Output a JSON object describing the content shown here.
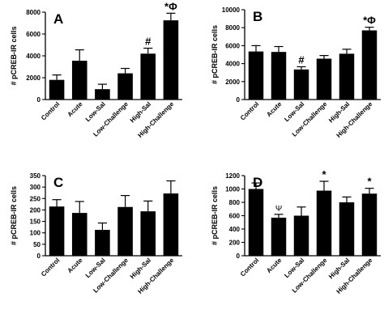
{
  "chart_data": [
    {
      "type": "bar",
      "panel_label": "A",
      "categories": [
        "Control",
        "Acute",
        "Low-Sal",
        "Low-Challenge",
        "High-Sal",
        "High-Challenge"
      ],
      "values": [
        1800,
        3550,
        950,
        2400,
        4200,
        7250
      ],
      "errors": [
        450,
        1000,
        450,
        450,
        500,
        650
      ],
      "annotations": [
        "",
        "",
        "",
        "",
        "#",
        "*Φ"
      ],
      "ylabel": "# pCREB-IR cells",
      "ylim": [
        0,
        8000
      ],
      "yticks": [
        0,
        2000,
        4000,
        6000,
        8000
      ],
      "grid": false
    },
    {
      "type": "bar",
      "panel_label": "B",
      "categories": [
        "Control",
        "Acute",
        "Low-Sal",
        "Low-Challenge",
        "High-Sal",
        "High-Challenge"
      ],
      "values": [
        5350,
        5300,
        3350,
        4550,
        5100,
        7700
      ],
      "errors": [
        650,
        600,
        300,
        350,
        500,
        350
      ],
      "annotations": [
        "",
        "",
        "#",
        "",
        "",
        "*Φ"
      ],
      "ylabel": "# pCREB-IR cells",
      "ylim": [
        0,
        10000
      ],
      "yticks": [
        0,
        2000,
        4000,
        6000,
        8000,
        10000
      ],
      "grid": false
    },
    {
      "type": "bar",
      "panel_label": "C",
      "categories": [
        "Control",
        "Acute",
        "Low-Sal",
        "Low-Challenge",
        "High-Sal",
        "High-Challenge"
      ],
      "values": [
        215,
        187,
        113,
        213,
        194,
        272
      ],
      "errors": [
        30,
        50,
        30,
        50,
        45,
        55
      ],
      "annotations": [
        "",
        "",
        "",
        "",
        "",
        ""
      ],
      "ylabel": "# pCREB-IR cells",
      "ylim": [
        0,
        350
      ],
      "yticks": [
        0,
        50,
        100,
        150,
        200,
        250,
        300,
        350
      ],
      "grid": false
    },
    {
      "type": "bar",
      "panel_label": "D",
      "categories": [
        "Control",
        "Acute",
        "Low-Sal",
        "Low-Challenge",
        "High-Sal",
        "High-Challenge"
      ],
      "values": [
        1000,
        570,
        600,
        975,
        800,
        930
      ],
      "errors": [
        90,
        50,
        130,
        140,
        80,
        80
      ],
      "annotations": [
        "",
        "Ψ",
        "",
        "*",
        "",
        "*"
      ],
      "ylabel": "# pCREB-IR cells",
      "ylim": [
        0,
        1200
      ],
      "yticks": [
        0,
        200,
        400,
        600,
        800,
        1000,
        1200
      ],
      "grid": false
    }
  ]
}
